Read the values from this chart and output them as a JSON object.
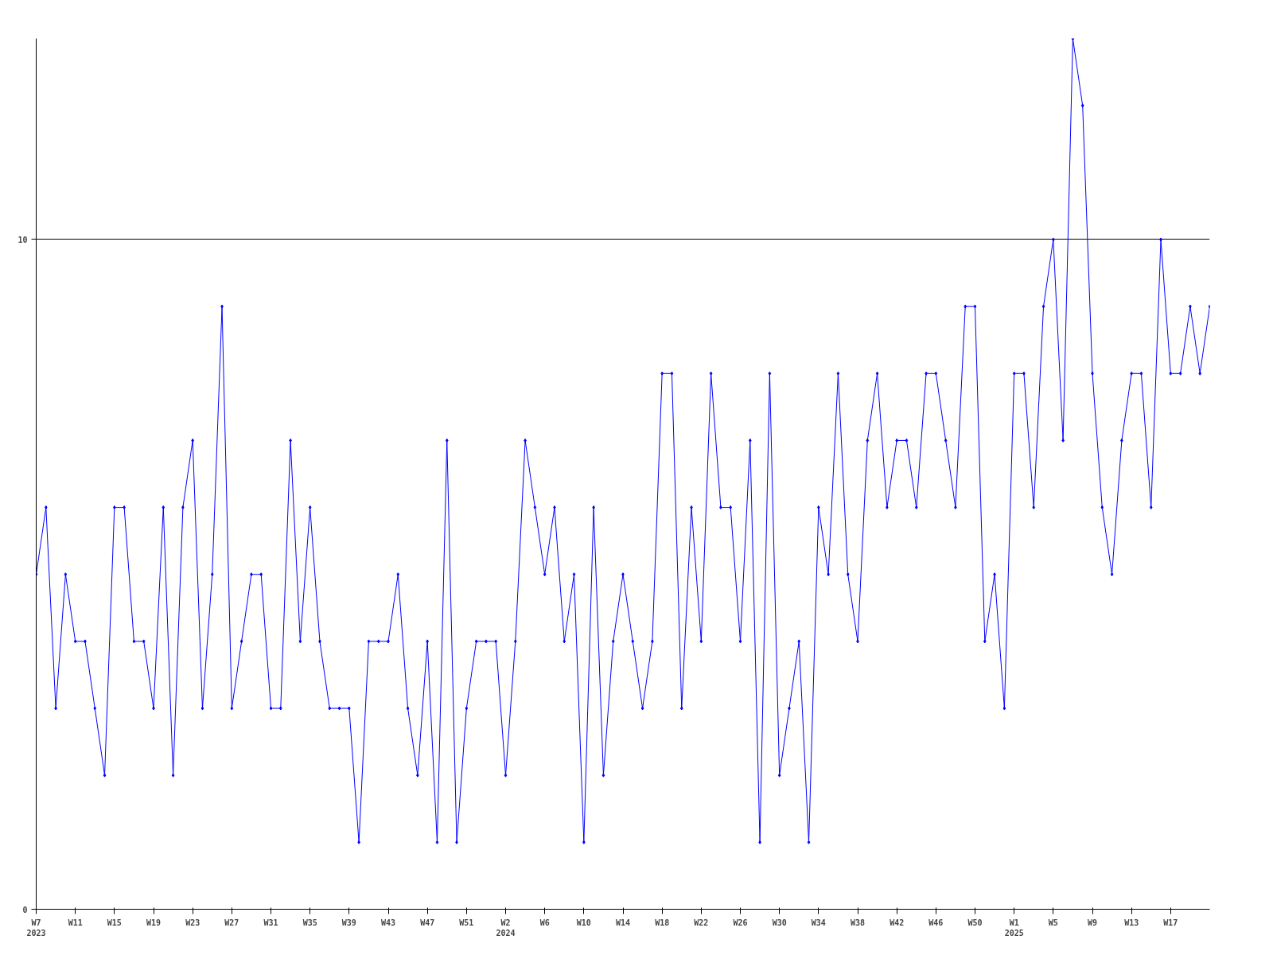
{
  "chart_data": {
    "type": "line",
    "color": "#0000ff",
    "marker": "diamond",
    "grid": "y",
    "ylim": [
      0,
      13
    ],
    "yticks": [
      0,
      10
    ],
    "categories": [
      "W7\n2023",
      null,
      null,
      null,
      "W11",
      null,
      null,
      null,
      "W15",
      null,
      null,
      null,
      "W19",
      null,
      null,
      null,
      "W23",
      null,
      null,
      null,
      "W27",
      null,
      null,
      null,
      "W31",
      null,
      null,
      null,
      "W35",
      null,
      null,
      null,
      "W39",
      null,
      null,
      null,
      "W43",
      null,
      null,
      null,
      "W47",
      null,
      null,
      null,
      "W51",
      null,
      null,
      null,
      "W2\n2024",
      null,
      null,
      null,
      "W6",
      null,
      null,
      null,
      "W10",
      null,
      null,
      null,
      "W14",
      null,
      null,
      null,
      "W18",
      null,
      null,
      null,
      "W22",
      null,
      null,
      null,
      "W26",
      null,
      null,
      null,
      "W30",
      null,
      null,
      null,
      "W34",
      null,
      null,
      null,
      "W38",
      null,
      null,
      null,
      "W42",
      null,
      null,
      null,
      "W46",
      null,
      null,
      null,
      "W50",
      null,
      null,
      null,
      "W1\n2025",
      null,
      null,
      null,
      "W5",
      null,
      null,
      null,
      "W9",
      null,
      null,
      null,
      "W13",
      null,
      null,
      null,
      "W17",
      null,
      null,
      null,
      null
    ],
    "values": [
      5,
      6,
      3,
      5,
      4,
      4,
      3,
      2,
      6,
      6,
      4,
      4,
      3,
      6,
      2,
      6,
      7,
      3,
      5,
      9,
      3,
      4,
      5,
      5,
      3,
      3,
      7,
      4,
      6,
      4,
      3,
      3,
      3,
      1,
      4,
      4,
      4,
      5,
      3,
      2,
      4,
      1,
      7,
      1,
      3,
      4,
      4,
      4,
      2,
      4,
      7,
      6,
      5,
      6,
      4,
      5,
      1,
      6,
      2,
      4,
      5,
      4,
      3,
      4,
      8,
      8,
      3,
      6,
      4,
      8,
      6,
      6,
      4,
      7,
      1,
      8,
      2,
      3,
      4,
      1,
      6,
      5,
      8,
      5,
      4,
      7,
      8,
      6,
      7,
      7,
      6,
      8,
      8,
      7,
      6,
      9,
      9,
      4,
      5,
      3,
      8,
      8,
      6,
      9,
      10,
      7,
      13,
      12,
      8,
      6,
      5,
      7,
      8,
      8,
      6,
      10,
      8,
      8,
      9,
      8,
      9
    ]
  }
}
